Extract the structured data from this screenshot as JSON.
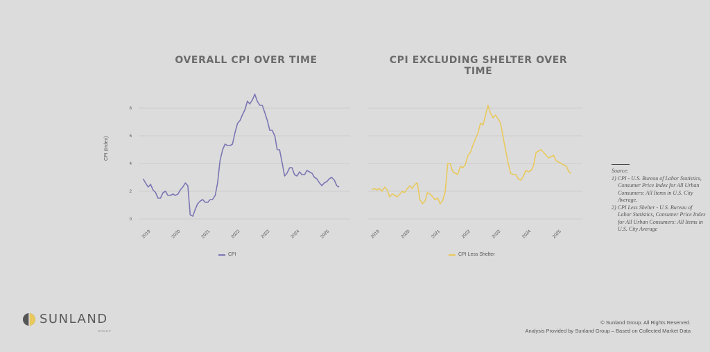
{
  "chart_data": [
    {
      "type": "line",
      "title": "OVERALL CPI OVER TIME",
      "ylabel": "CPI (Index)",
      "xlabel": "",
      "ylim": [
        0,
        9
      ],
      "yticks": [
        "0",
        "2",
        "4",
        "6",
        "8"
      ],
      "xticks": [
        "2019",
        "2020",
        "2021",
        "2022",
        "2023",
        "2024",
        "2025"
      ],
      "xlim": [
        2018.6,
        2025.7
      ],
      "series": [
        {
          "name": "CPI",
          "color": "#7b76b3",
          "x": [
            2018.75,
            2018.83,
            2018.92,
            2019.0,
            2019.08,
            2019.17,
            2019.25,
            2019.33,
            2019.42,
            2019.5,
            2019.58,
            2019.67,
            2019.75,
            2019.83,
            2019.92,
            2020.0,
            2020.08,
            2020.17,
            2020.25,
            2020.33,
            2020.42,
            2020.5,
            2020.58,
            2020.67,
            2020.75,
            2020.83,
            2020.92,
            2021.0,
            2021.08,
            2021.17,
            2021.25,
            2021.33,
            2021.42,
            2021.5,
            2021.58,
            2021.67,
            2021.75,
            2021.83,
            2021.92,
            2022.0,
            2022.08,
            2022.17,
            2022.25,
            2022.33,
            2022.42,
            2022.5,
            2022.58,
            2022.67,
            2022.75,
            2022.83,
            2022.92,
            2023.0,
            2023.08,
            2023.17,
            2023.25,
            2023.33,
            2023.42,
            2023.5,
            2023.58,
            2023.67,
            2023.75,
            2023.83,
            2023.92,
            2024.0,
            2024.08,
            2024.17,
            2024.25,
            2024.33,
            2024.42,
            2024.5,
            2024.58,
            2024.67,
            2024.75,
            2024.83,
            2024.92,
            2025.0,
            2025.08,
            2025.17,
            2025.25,
            2025.33
          ],
          "values": [
            2.9,
            2.6,
            2.3,
            2.5,
            2.1,
            1.9,
            1.5,
            1.5,
            1.9,
            2.0,
            1.7,
            1.7,
            1.8,
            1.7,
            1.8,
            2.1,
            2.3,
            2.6,
            2.4,
            0.3,
            0.2,
            0.7,
            1.1,
            1.3,
            1.4,
            1.2,
            1.2,
            1.4,
            1.4,
            1.7,
            2.6,
            4.2,
            5.0,
            5.4,
            5.3,
            5.3,
            5.4,
            6.2,
            6.9,
            7.1,
            7.5,
            7.9,
            8.5,
            8.3,
            8.6,
            9.0,
            8.5,
            8.2,
            8.2,
            7.7,
            7.1,
            6.4,
            6.4,
            6.0,
            5.0,
            5.0,
            4.0,
            3.1,
            3.3,
            3.7,
            3.7,
            3.2,
            3.1,
            3.4,
            3.2,
            3.2,
            3.5,
            3.4,
            3.3,
            3.0,
            2.9,
            2.6,
            2.4,
            2.6,
            2.7,
            2.9,
            3.0,
            2.8,
            2.4,
            2.3
          ]
        }
      ]
    },
    {
      "type": "line",
      "title": "CPI EXCLUDING SHELTER OVER TIME",
      "ylabel": "",
      "xlabel": "",
      "ylim": [
        0,
        9
      ],
      "xticks": [
        "2019",
        "2020",
        "2021",
        "2022",
        "2023",
        "2024",
        "2025"
      ],
      "xlim": [
        2018.6,
        2025.7
      ],
      "series": [
        {
          "name": "CPI Less Shelter",
          "color": "#e9c95e",
          "x": [
            2018.75,
            2018.83,
            2018.92,
            2019.0,
            2019.08,
            2019.17,
            2019.25,
            2019.33,
            2019.42,
            2019.5,
            2019.58,
            2019.67,
            2019.75,
            2019.83,
            2019.92,
            2020.0,
            2020.08,
            2020.17,
            2020.25,
            2020.33,
            2020.42,
            2020.5,
            2020.58,
            2020.67,
            2020.75,
            2020.83,
            2020.92,
            2021.0,
            2021.08,
            2021.17,
            2021.25,
            2021.33,
            2021.42,
            2021.5,
            2021.58,
            2021.67,
            2021.75,
            2021.83,
            2021.92,
            2022.0,
            2022.08,
            2022.17,
            2022.25,
            2022.33,
            2022.42,
            2022.5,
            2022.58,
            2022.67,
            2022.75,
            2022.83,
            2022.92,
            2023.0,
            2023.08,
            2023.17,
            2023.25,
            2023.33,
            2023.42,
            2023.5,
            2023.58,
            2023.67,
            2023.75,
            2023.83,
            2023.92,
            2024.0,
            2024.08,
            2024.17,
            2024.25,
            2024.33,
            2024.42,
            2024.5,
            2024.58,
            2024.67,
            2024.75,
            2024.83,
            2024.92,
            2025.0,
            2025.08,
            2025.17,
            2025.25,
            2025.33
          ],
          "values": [
            2.1,
            2.2,
            2.1,
            2.2,
            2.0,
            2.3,
            2.1,
            1.6,
            1.8,
            1.7,
            1.6,
            1.8,
            2.0,
            1.9,
            2.2,
            2.4,
            2.2,
            2.5,
            2.6,
            1.4,
            1.1,
            1.3,
            1.9,
            1.8,
            1.6,
            1.4,
            1.5,
            1.1,
            1.3,
            2.0,
            4.0,
            4.0,
            3.4,
            3.3,
            3.2,
            3.8,
            3.7,
            3.9,
            4.6,
            4.8,
            5.3,
            5.8,
            6.2,
            6.9,
            6.8,
            7.5,
            8.2,
            7.6,
            7.3,
            7.5,
            7.2,
            6.9,
            5.9,
            4.9,
            4.0,
            3.3,
            3.2,
            3.2,
            2.9,
            2.8,
            3.1,
            3.5,
            3.4,
            3.5,
            3.8,
            4.8,
            4.9,
            5.0,
            4.8,
            4.6,
            4.4,
            4.5,
            4.6,
            4.2,
            4.1,
            4.0,
            3.9,
            3.8,
            3.4,
            3.3
          ]
        }
      ]
    }
  ],
  "source": {
    "heading": "Source:",
    "items": [
      "1) CPI - U.S. Bureau of Labor Statistics, Consumer Price Index for All Urban Consumers: All Items in U.S. City Average.",
      "2) CPI  Less Shelter - U.S. Bureau of Labor Statistics, Consumer Price Index for All Urban Consumers: All Items in U.S. City Average"
    ]
  },
  "brand": {
    "name": "SUNLAND",
    "sub": "GROUP"
  },
  "footer": {
    "copyright": "© Sunland Group. All Rights Reserved.",
    "analysis": "Analysis Provided by Sunland Group – Based on Collected Market Data"
  }
}
